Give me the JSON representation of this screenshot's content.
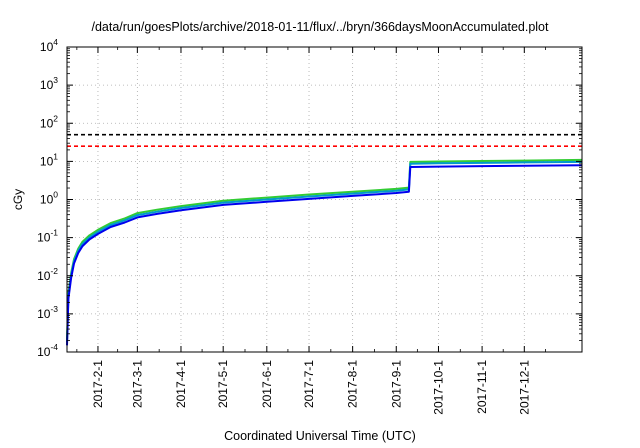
{
  "chart_data": {
    "type": "line",
    "title": "/data/run/goesPlots/archive/2018-01-11/flux/../bryn/366daysMoonAccumulated.plot",
    "xlabel": "Coordinated Universal Time (UTC)",
    "ylabel": "cGy",
    "y_scale": "log",
    "ylim": [
      0.0001,
      10000
    ],
    "xlim": [
      "2017-01-10",
      "2018-01-11"
    ],
    "y_ticks": [
      {
        "base": "10",
        "exp": "-4",
        "value": 0.0001
      },
      {
        "base": "10",
        "exp": "-3",
        "value": 0.001
      },
      {
        "base": "10",
        "exp": "-2",
        "value": 0.01
      },
      {
        "base": "10",
        "exp": "-1",
        "value": 0.1
      },
      {
        "base": "10",
        "exp": "0",
        "value": 1
      },
      {
        "base": "10",
        "exp": "1",
        "value": 10
      },
      {
        "base": "10",
        "exp": "2",
        "value": 100
      },
      {
        "base": "10",
        "exp": "3",
        "value": 1000
      },
      {
        "base": "10",
        "exp": "4",
        "value": 10000
      }
    ],
    "x_ticks": [
      {
        "label": "2017-2-1",
        "date": "2017-02-01"
      },
      {
        "label": "2017-3-1",
        "date": "2017-03-01"
      },
      {
        "label": "2017-4-1",
        "date": "2017-04-01"
      },
      {
        "label": "2017-5-1",
        "date": "2017-05-01"
      },
      {
        "label": "2017-6-1",
        "date": "2017-06-01"
      },
      {
        "label": "2017-7-1",
        "date": "2017-07-01"
      },
      {
        "label": "2017-8-1",
        "date": "2017-08-01"
      },
      {
        "label": "2017-9-1",
        "date": "2017-09-01"
      },
      {
        "label": "2017-10-1",
        "date": "2017-10-01"
      },
      {
        "label": "2017-11-1",
        "date": "2017-11-01"
      },
      {
        "label": "2017-12-1",
        "date": "2017-12-01"
      }
    ],
    "grid": true,
    "reference_lines": [
      {
        "y": 50,
        "color": "#000000",
        "style": "dashed"
      },
      {
        "y": 25,
        "color": "#ff0000",
        "style": "dashed"
      }
    ],
    "series": [
      {
        "color": "#33cc33",
        "x": [
          "2017-01-10",
          "2017-01-11",
          "2017-01-13",
          "2017-01-15",
          "2017-01-18",
          "2017-01-21",
          "2017-01-26",
          "2017-02-01",
          "2017-02-10",
          "2017-02-20",
          "2017-03-01",
          "2017-03-15",
          "2017-04-01",
          "2017-05-01",
          "2017-06-01",
          "2017-07-01",
          "2017-08-01",
          "2017-09-01",
          "2017-09-10",
          "2017-09-11",
          "2017-10-01",
          "2017-11-01",
          "2017-12-01",
          "2018-01-11"
        ],
        "y": [
          0.0002,
          0.0035,
          0.012,
          0.027,
          0.052,
          0.078,
          0.115,
          0.16,
          0.24,
          0.32,
          0.44,
          0.54,
          0.67,
          0.93,
          1.12,
          1.35,
          1.6,
          1.9,
          2.05,
          9.7,
          9.9,
          10.2,
          10.5,
          10.9
        ]
      },
      {
        "color": "#0099cc",
        "x": [
          "2017-01-10",
          "2017-01-11",
          "2017-01-13",
          "2017-01-15",
          "2017-01-18",
          "2017-01-21",
          "2017-01-26",
          "2017-02-01",
          "2017-02-10",
          "2017-02-20",
          "2017-03-01",
          "2017-03-15",
          "2017-04-01",
          "2017-05-01",
          "2017-06-01",
          "2017-07-01",
          "2017-08-01",
          "2017-09-01",
          "2017-09-10",
          "2017-09-11",
          "2017-10-01",
          "2017-11-01",
          "2017-12-01",
          "2018-01-11"
        ],
        "y": [
          0.00018,
          0.003,
          0.0105,
          0.024,
          0.046,
          0.069,
          0.102,
          0.142,
          0.215,
          0.285,
          0.39,
          0.48,
          0.6,
          0.83,
          1.0,
          1.2,
          1.43,
          1.7,
          1.84,
          8.7,
          8.9,
          9.1,
          9.4,
          9.7
        ]
      },
      {
        "color": "#0000ee",
        "x": [
          "2017-01-10",
          "2017-01-11",
          "2017-01-13",
          "2017-01-15",
          "2017-01-18",
          "2017-01-21",
          "2017-01-26",
          "2017-02-01",
          "2017-02-10",
          "2017-02-20",
          "2017-03-01",
          "2017-03-15",
          "2017-04-01",
          "2017-05-01",
          "2017-06-01",
          "2017-07-01",
          "2017-08-01",
          "2017-09-01",
          "2017-09-10",
          "2017-09-11",
          "2017-10-01",
          "2017-11-01",
          "2017-12-01",
          "2018-01-11"
        ],
        "y": [
          0.00015,
          0.0025,
          0.009,
          0.021,
          0.04,
          0.06,
          0.09,
          0.125,
          0.19,
          0.25,
          0.34,
          0.42,
          0.52,
          0.72,
          0.87,
          1.04,
          1.24,
          1.48,
          1.6,
          7.1,
          7.3,
          7.5,
          7.7,
          7.9
        ]
      }
    ]
  }
}
